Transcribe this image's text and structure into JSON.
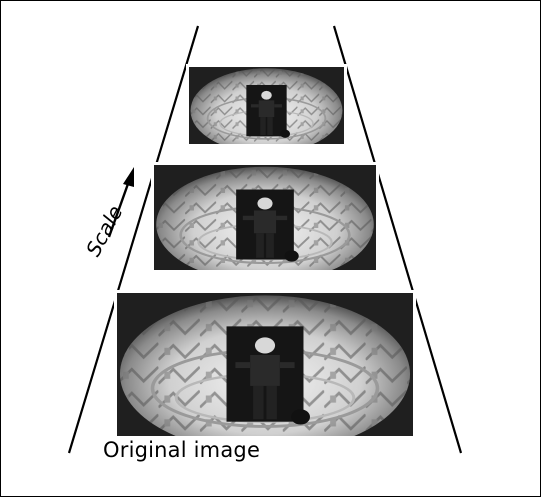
{
  "scale_label": "Scale",
  "caption": "Original image",
  "pyramid_levels": [
    {
      "level": 2,
      "name": "top"
    },
    {
      "level": 1,
      "name": "middle"
    },
    {
      "level": 0,
      "name": "bottom"
    }
  ]
}
